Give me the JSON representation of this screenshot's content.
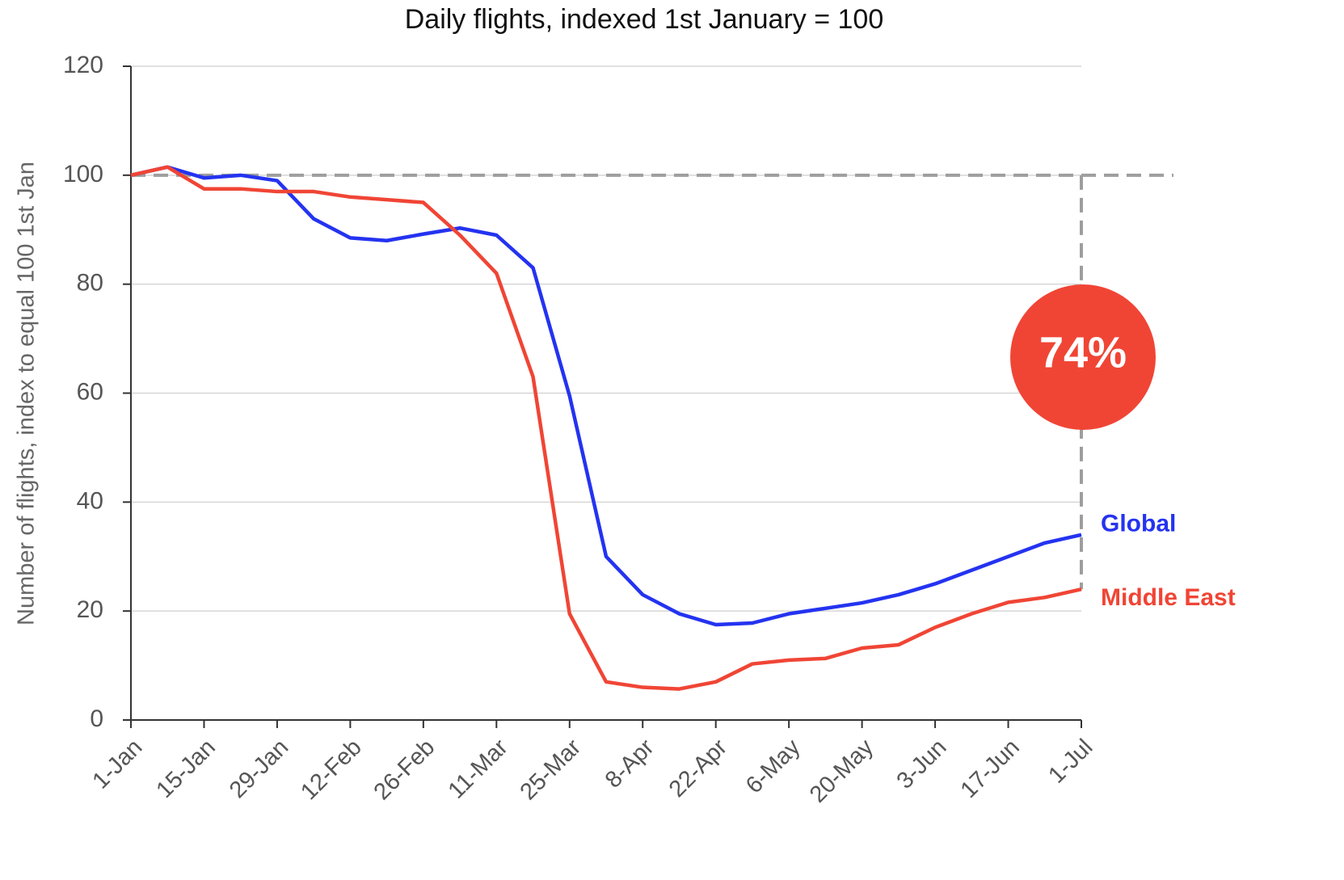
{
  "chart_data": {
    "type": "line",
    "title": "Daily flights, indexed 1st January = 100",
    "y_label": "Number of flights, index to equal 100 1st Jan",
    "categories": [
      "1-Jan",
      null,
      "15-Jan",
      null,
      "29-Jan",
      null,
      "12-Feb",
      null,
      "26-Feb",
      null,
      "11-Mar",
      null,
      "25-Mar",
      null,
      "8-Apr",
      null,
      "22-Apr",
      null,
      "6-May",
      null,
      "20-May",
      null,
      "3-Jun",
      null,
      "17-Jun",
      null,
      "1-Jul"
    ],
    "series": [
      {
        "name": "Global",
        "color": "#2433f0",
        "values": [
          100,
          101.5,
          99.5,
          100,
          99,
          92,
          88.5,
          88,
          89.2,
          90.3,
          89,
          83,
          59.5,
          30,
          23,
          19.5,
          17.5,
          17.8,
          19.5,
          20.5,
          21.5,
          23,
          25,
          27.5,
          30,
          32.5,
          34
        ]
      },
      {
        "name": "Middle East",
        "color": "#f04535",
        "values": [
          100,
          101.5,
          97.5,
          97.5,
          97,
          97,
          96,
          95.5,
          95,
          89,
          82,
          63,
          19.5,
          7,
          6,
          5.7,
          7,
          10.3,
          11,
          11.3,
          13.2,
          13.8,
          17,
          19.5,
          21.6,
          22.5,
          24
        ]
      }
    ],
    "reference": 100,
    "annotation": "74%",
    "ylim": [
      0,
      120
    ],
    "yticks": [
      0,
      20,
      40,
      60,
      80,
      100,
      120
    ],
    "grid": true
  }
}
